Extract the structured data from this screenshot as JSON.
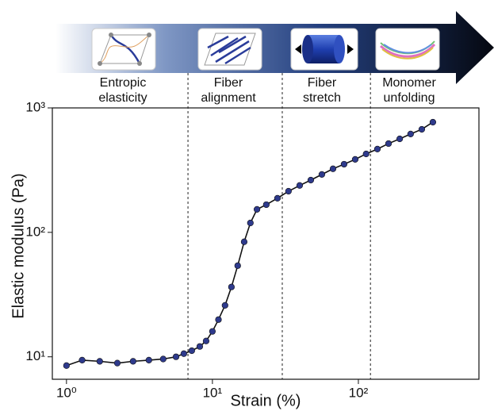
{
  "chart_data": {
    "type": "line",
    "xlabel": "Strain (%)",
    "ylabel": "Elastic modulus (Pa)",
    "xscale": "log",
    "yscale": "log",
    "x": [
      1.0,
      1.28,
      1.69,
      2.23,
      2.86,
      3.67,
      4.6,
      5.63,
      6.37,
      7.22,
      8.19,
      9.05,
      10.0,
      11.0,
      12.2,
      13.5,
      14.9,
      16.5,
      18.2,
      20.2,
      23.4,
      27.9,
      33.2,
      39.6,
      47.2,
      56.2,
      67.0,
      79.8,
      95.1,
      113,
      135,
      161,
      192,
      228,
      272,
      324
    ],
    "values": [
      8.5,
      9.4,
      9.2,
      8.9,
      9.2,
      9.4,
      9.6,
      10.0,
      10.6,
      11.2,
      12.1,
      13.4,
      16.0,
      19.9,
      25.9,
      36.4,
      54,
      84,
      119,
      153,
      167,
      188,
      214,
      238,
      263,
      292,
      324,
      353,
      386,
      427,
      467,
      517,
      564,
      617,
      673,
      768
    ],
    "line_color": "#111111",
    "marker_color": "#2e3a8c",
    "xlim": [
      0.8,
      670
    ],
    "ylim": [
      6.6,
      1000
    ],
    "xticks": [
      {
        "value": 1,
        "label": "10⁰"
      },
      {
        "value": 10,
        "label": "10¹"
      },
      {
        "value": 100,
        "label": "10²"
      }
    ],
    "yticks": [
      {
        "value": 10,
        "label": "10¹"
      },
      {
        "value": 100,
        "label": "10²"
      },
      {
        "value": 1000,
        "label": "10³"
      }
    ],
    "boundaries": [
      6.8,
      30.1,
      121
    ],
    "regimes": [
      [
        "Entropic",
        "elasticity"
      ],
      [
        "Fiber",
        "alignment"
      ],
      [
        "Fiber",
        "stretch"
      ],
      [
        "Monomer",
        "unfolding"
      ]
    ]
  }
}
